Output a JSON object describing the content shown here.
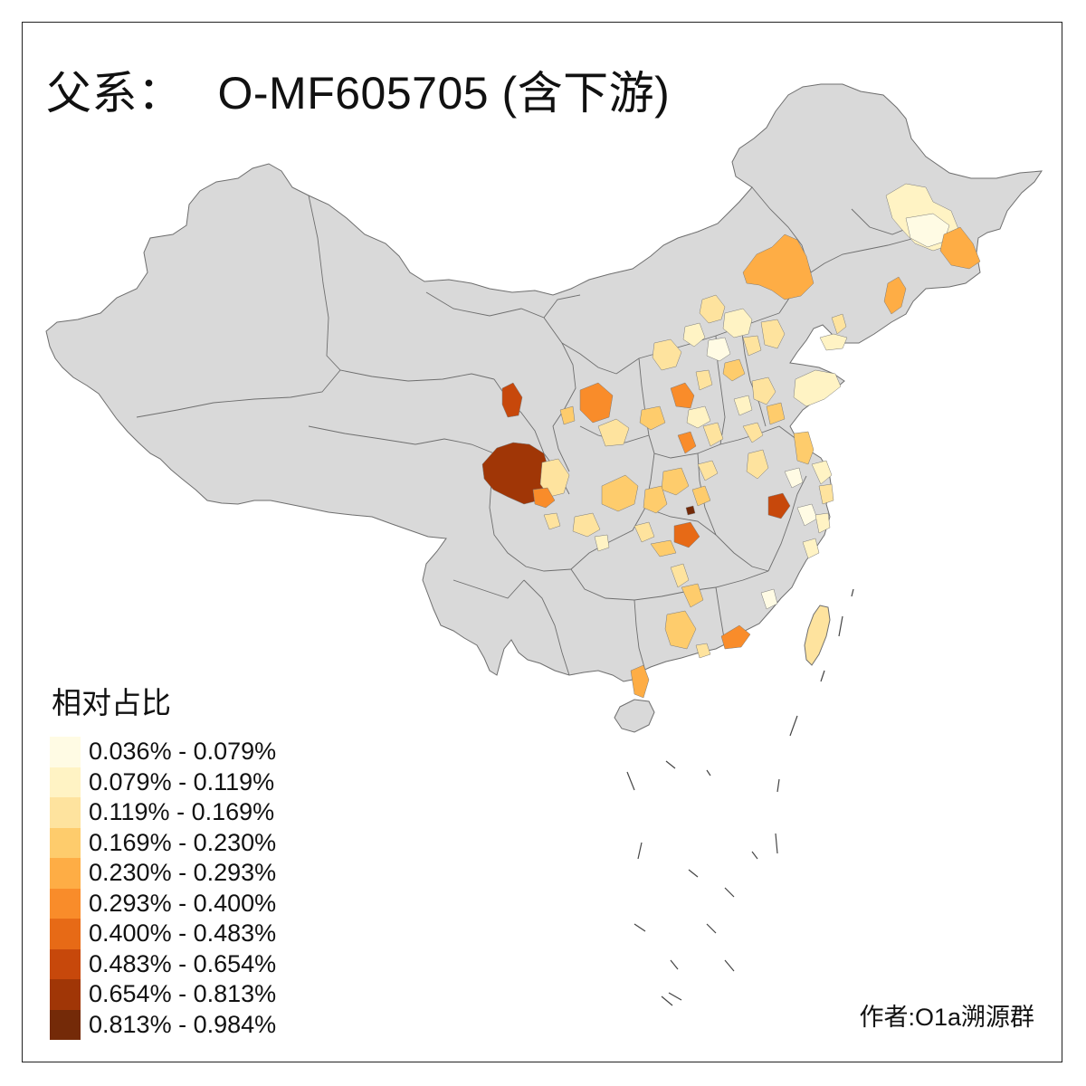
{
  "title": {
    "prefix": "父系：",
    "haplogroup": "O-MF605705 (含下游)"
  },
  "legend": {
    "title": "相对占比",
    "bins": [
      {
        "label": "0.036% - 0.079%",
        "color": "#FFFBE4"
      },
      {
        "label": "0.079% - 0.119%",
        "color": "#FFF3C4"
      },
      {
        "label": "0.119% - 0.169%",
        "color": "#FEE39E"
      },
      {
        "label": "0.169% - 0.230%",
        "color": "#FECC6C"
      },
      {
        "label": "0.230% - 0.293%",
        "color": "#FEAD45"
      },
      {
        "label": "0.293% - 0.400%",
        "color": "#F98C2A"
      },
      {
        "label": "0.400% - 0.483%",
        "color": "#E76A16"
      },
      {
        "label": "0.483% - 0.654%",
        "color": "#C7480B"
      },
      {
        "label": "0.654% - 0.813%",
        "color": "#A03606"
      },
      {
        "label": "0.813% - 0.984%",
        "color": "#742A08"
      }
    ]
  },
  "credit": "作者:O1a溯源群",
  "colors": {
    "land": "#D9D9D9",
    "border": "#6E6E6E",
    "no_data": "#D9D9D9"
  }
}
